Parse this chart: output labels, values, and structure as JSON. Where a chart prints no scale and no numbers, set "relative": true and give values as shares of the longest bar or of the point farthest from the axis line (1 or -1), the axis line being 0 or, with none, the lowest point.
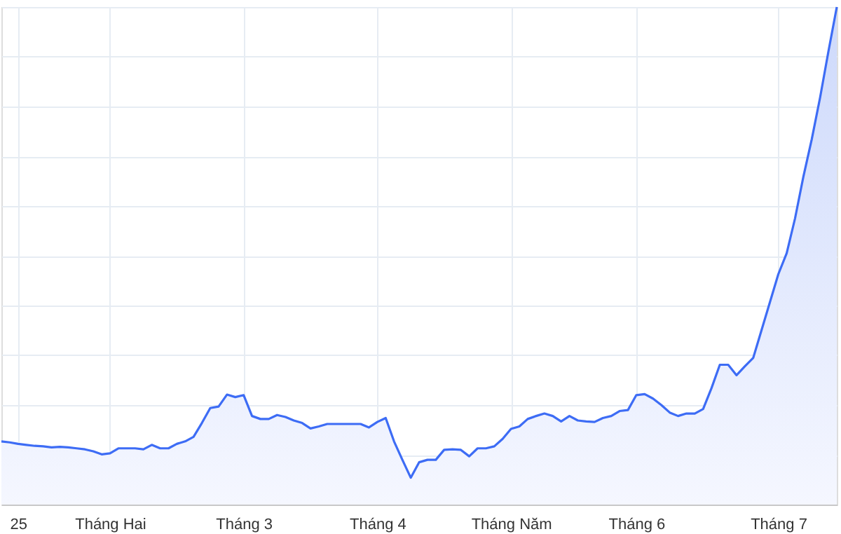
{
  "chart_data": {
    "type": "area",
    "relative": true,
    "grid": true,
    "tick_labels": "x",
    "categories": [
      null,
      null,
      "25",
      null,
      null,
      null,
      null,
      null,
      null,
      null,
      null,
      null,
      null,
      "Tháng Hai",
      null,
      null,
      null,
      null,
      null,
      null,
      null,
      null,
      null,
      null,
      null,
      null,
      null,
      null,
      null,
      "Tháng 3",
      null,
      null,
      null,
      null,
      null,
      null,
      null,
      null,
      null,
      null,
      null,
      null,
      null,
      null,
      null,
      "Tháng 4",
      null,
      null,
      null,
      null,
      null,
      null,
      null,
      null,
      null,
      null,
      null,
      null,
      null,
      null,
      null,
      "Tháng Năm",
      null,
      null,
      null,
      null,
      null,
      null,
      null,
      null,
      null,
      null,
      null,
      null,
      null,
      null,
      "Tháng 6",
      null,
      null,
      null,
      null,
      null,
      null,
      null,
      null,
      null,
      null,
      null,
      null,
      null,
      null,
      null,
      null,
      "Tháng 7",
      null,
      null,
      null,
      null,
      null,
      null,
      null
    ],
    "series": [
      {
        "color": "#3d6cf5",
        "values": [
          0.127,
          0.125,
          0.122,
          0.12,
          0.118,
          0.117,
          0.115,
          0.116,
          0.115,
          0.113,
          0.111,
          0.107,
          0.101,
          0.103,
          0.113,
          0.113,
          0.113,
          0.111,
          0.12,
          0.113,
          0.113,
          0.122,
          0.127,
          0.136,
          0.164,
          0.194,
          0.197,
          0.221,
          0.216,
          0.22,
          0.178,
          0.172,
          0.172,
          0.18,
          0.176,
          0.169,
          0.164,
          0.153,
          0.157,
          0.162,
          0.162,
          0.162,
          0.162,
          0.162,
          0.155,
          0.166,
          0.174,
          0.127,
          0.09,
          0.054,
          0.085,
          0.09,
          0.09,
          0.11,
          0.111,
          0.11,
          0.097,
          0.113,
          0.113,
          0.117,
          0.132,
          0.152,
          0.157,
          0.172,
          0.178,
          0.183,
          0.178,
          0.167,
          0.178,
          0.169,
          0.167,
          0.166,
          0.174,
          0.178,
          0.188,
          0.19,
          0.22,
          0.222,
          0.213,
          0.2,
          0.185,
          0.178,
          0.183,
          0.183,
          0.192,
          0.234,
          0.281,
          0.281,
          0.26,
          0.278,
          0.295,
          0.351,
          0.407,
          0.463,
          0.505,
          0.575,
          0.659,
          0.734,
          0.818,
          0.911,
          1.0
        ]
      }
    ]
  }
}
